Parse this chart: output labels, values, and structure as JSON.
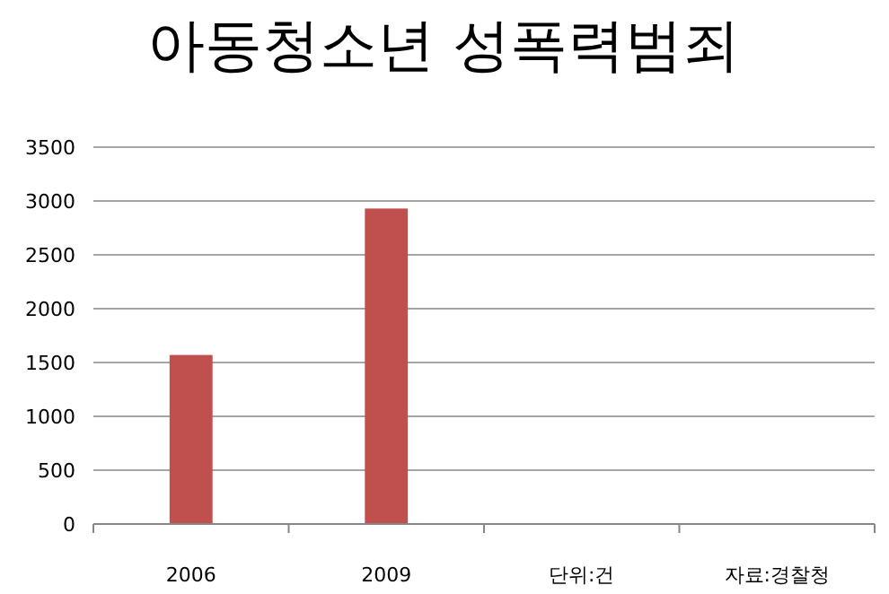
{
  "chart_data": {
    "type": "bar",
    "title": "아동청소년 성폭력범죄",
    "categories": [
      "2006",
      "2009",
      "단위:건",
      "자료:경찰청"
    ],
    "values": [
      1570,
      2930,
      null,
      null
    ],
    "color": "#c0504d",
    "ylim": [
      0,
      3500
    ],
    "yticks": [
      0,
      500,
      1000,
      1500,
      2000,
      2500,
      3000,
      3500
    ],
    "grid": "y"
  }
}
